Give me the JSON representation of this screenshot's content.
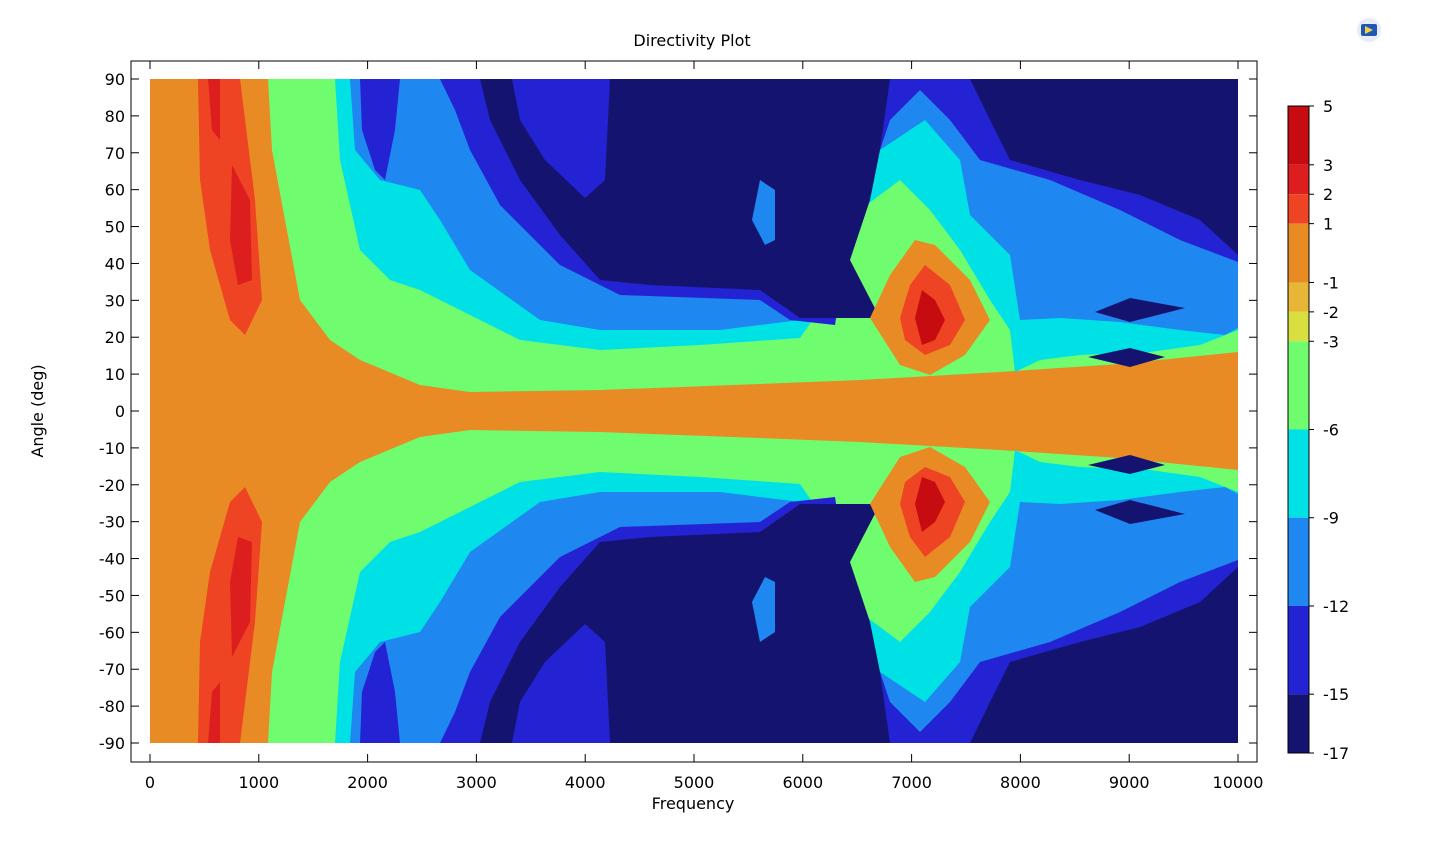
{
  "chart_data": {
    "type": "heatmap",
    "title": "Directivity Plot",
    "xlabel": "Frequency",
    "ylabel": "Angle (deg)",
    "xlim": [
      0,
      10000
    ],
    "ylim": [
      -90,
      90
    ],
    "x_ticks": [
      0,
      1000,
      2000,
      3000,
      4000,
      5000,
      6000,
      7000,
      8000,
      9000,
      10000
    ],
    "y_ticks": [
      90,
      80,
      70,
      60,
      50,
      40,
      30,
      20,
      10,
      0,
      -10,
      -20,
      -30,
      -40,
      -50,
      -60,
      -70,
      -80,
      -90
    ],
    "colorbar": {
      "min": -17,
      "max": 5,
      "ticks": [
        5,
        3,
        2,
        1,
        -1,
        -2,
        -3,
        -6,
        -9,
        -12,
        -15,
        -17
      ],
      "bands": [
        {
          "from": 3,
          "to": 5,
          "color": "#c60c10"
        },
        {
          "from": 2,
          "to": 3,
          "color": "#dd1e1e"
        },
        {
          "from": 1,
          "to": 2,
          "color": "#ee4423"
        },
        {
          "from": -1,
          "to": 1,
          "color": "#e88b25"
        },
        {
          "from": -2,
          "to": -1,
          "color": "#e8b636"
        },
        {
          "from": -3,
          "to": -2,
          "color": "#d9df3e"
        },
        {
          "from": -6,
          "to": -3,
          "color": "#6ffc6f"
        },
        {
          "from": -9,
          "to": -6,
          "color": "#00e1e6"
        },
        {
          "from": -12,
          "to": -9,
          "color": "#1e88f0"
        },
        {
          "from": -15,
          "to": -12,
          "color": "#2323d4"
        },
        {
          "from": -17,
          "to": -15,
          "color": "#141470"
        }
      ]
    },
    "features": [
      {
        "frequency": 800,
        "angle": 50,
        "level": 2
      },
      {
        "frequency": 800,
        "angle": -50,
        "level": 2
      },
      {
        "frequency": 7100,
        "angle": 25,
        "level": 4
      },
      {
        "frequency": 7100,
        "angle": -25,
        "level": 4
      },
      {
        "frequency": 5000,
        "angle": 0,
        "level": 0
      },
      {
        "frequency": 4500,
        "angle": 60,
        "level": -16
      },
      {
        "frequency": 4500,
        "angle": -60,
        "level": -16
      },
      {
        "frequency": 9000,
        "angle": 28,
        "level": -16
      },
      {
        "frequency": 9000,
        "angle": -28,
        "level": -16
      }
    ]
  },
  "toolbar": {
    "app_icon": "window-app-icon"
  }
}
